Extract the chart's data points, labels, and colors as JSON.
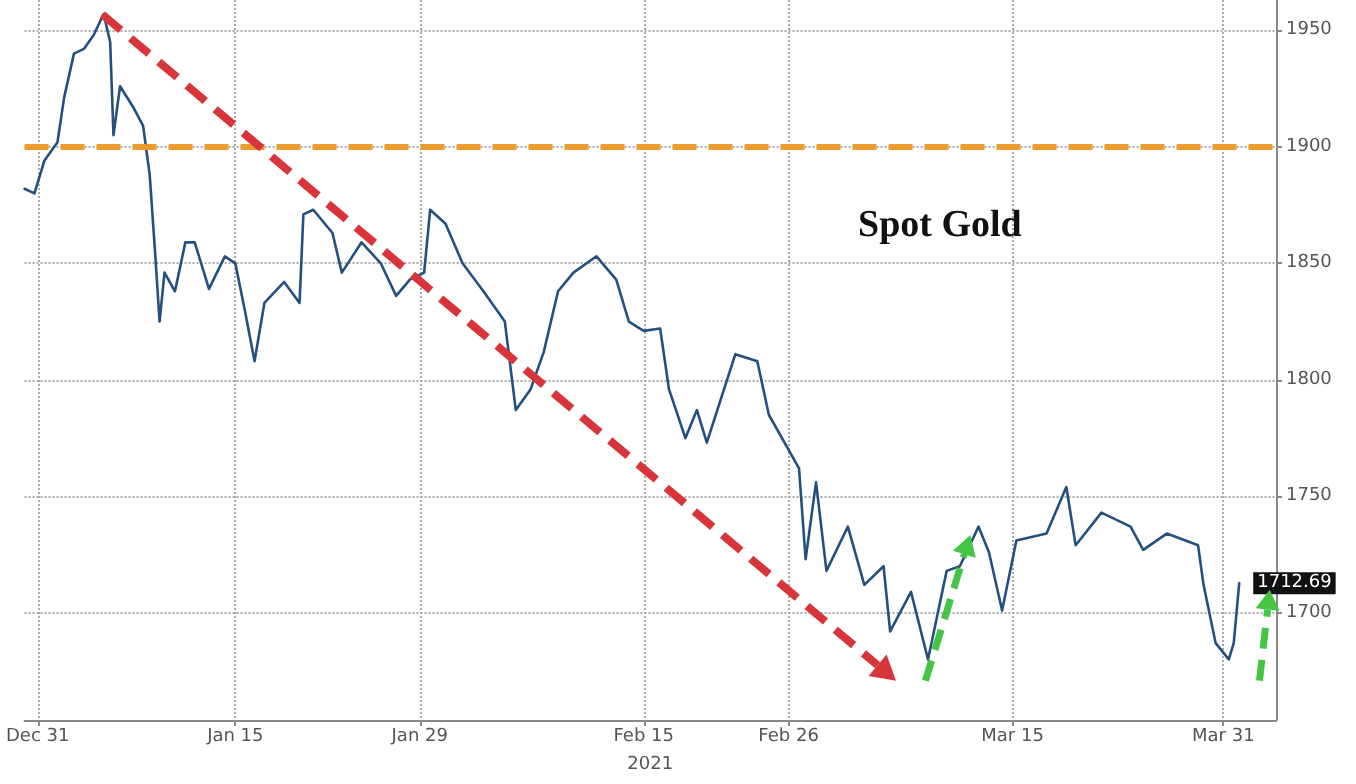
{
  "chart_data": {
    "type": "line",
    "title": "Spot Gold",
    "xlabel": "2021",
    "x": [
      "2020-12-30",
      "2020-12-30T18:00",
      "2020-12-31T12:00",
      "2021-01-01T12:00",
      "2021-01-02",
      "2021-01-02T18:00",
      "2021-01-03T12:00",
      "2021-01-04T06:00",
      "2021-01-05",
      "2021-01-05T12:00",
      "2021-01-05T18:00",
      "2021-01-06T06:00",
      "2021-01-07T06:00",
      "2021-01-08",
      "2021-01-08T12:00",
      "2021-01-08T22:00",
      "2021-01-09T06:00",
      "2021-01-09T15:00",
      "2021-01-10T10:00",
      "2021-01-11T05:00",
      "2021-01-11T22:00",
      "2021-01-13",
      "2021-01-14T05:00",
      "2021-01-15",
      "2021-01-15T18:00",
      "2021-01-16T11:00",
      "2021-01-17T05:00",
      "2021-01-18T17:00",
      "2021-01-19T21:00",
      "2021-01-20T04:00",
      "2021-01-20T22:00",
      "2021-01-22T09:00",
      "2021-01-23T02:00",
      "2021-01-24T14:00",
      "2021-01-26T01:00",
      "2021-01-27T05:00",
      "2021-01-28T06:00",
      "2021-01-29T08:00",
      "2021-01-29T19:00",
      "2021-01-30T23:00",
      "2021-02-01T06:00",
      "2021-02-02T20:00",
      "2021-02-04T11:00",
      "2021-02-05T07:00",
      "2021-02-06T10:00",
      "2021-02-07T10:00",
      "2021-02-08T12:00",
      "2021-02-09T16:00",
      "2021-02-11T10:00",
      "2021-02-12T22:00",
      "2021-02-13T21:00",
      "2021-02-15",
      "2021-02-16T06:00",
      "2021-02-16T22:00",
      "2021-02-18T04:00",
      "2021-02-19T01:00",
      "2021-02-19T19:00",
      "2021-02-21T23:00",
      "2021-02-23T15:00",
      "2021-02-24T12:00",
      "2021-02-26T19:00",
      "2021-02-27T07:00",
      "2021-02-28T02:00",
      "2021-02-28T21:00",
      "2021-03-02T12:00",
      "2021-03-03T18:00",
      "2021-03-05T05:00",
      "2021-03-05T17:00",
      "2021-03-07T07:00",
      "2021-03-08T14:00",
      "2021-03-10",
      "2021-03-11",
      "2021-03-12T10:00",
      "2021-03-13T05:00",
      "2021-03-14T05:00",
      "2021-03-15T07:00",
      "2021-03-17T14:00",
      "2021-03-19T02:00",
      "2021-03-19T19:00",
      "2021-03-21T18:00",
      "2021-03-23T23:00",
      "2021-03-24T22:00",
      "2021-03-26T17:00",
      "2021-03-29T02:00",
      "2021-03-29T12:00",
      "2021-03-30T10:00",
      "2021-03-31T10:00",
      "2021-03-31T19:00",
      "2021-04-01T05:00"
    ],
    "series": [
      {
        "color": "#24507f",
        "values": [
          1882,
          1880,
          1894,
          1902,
          1921,
          1940,
          1942,
          1948,
          1957,
          1945,
          1905,
          1926,
          1917,
          1909,
          1888,
          1854,
          1825,
          1846,
          1838,
          1859,
          1859,
          1839,
          1853,
          1850,
          1829,
          1808,
          1833,
          1842,
          1833,
          1871,
          1873,
          1863,
          1846,
          1859,
          1850,
          1836,
          1843,
          1846,
          1873,
          1867,
          1850,
          1838,
          1825,
          1787,
          1796,
          1812,
          1838,
          1846,
          1853,
          1843,
          1825,
          1821,
          1822,
          1796,
          1775,
          1787,
          1773,
          1811,
          1808,
          1785,
          1762,
          1723,
          1756,
          1718,
          1737,
          1712,
          1720,
          1692,
          1709,
          1680,
          1718,
          1720,
          1737,
          1726,
          1701,
          1731,
          1734,
          1754,
          1729,
          1743,
          1737,
          1727,
          1734,
          1729,
          1712,
          1687,
          1680,
          1687,
          1712.69
        ],
        "value_labels": [
          null,
          null,
          null,
          null,
          null,
          null,
          null,
          null,
          null,
          null,
          null,
          null,
          null,
          null,
          null,
          null,
          null,
          null,
          null,
          null,
          null,
          null,
          null,
          null,
          null,
          null,
          null,
          null,
          null,
          null,
          null,
          null,
          null,
          null,
          null,
          null,
          null,
          null,
          null,
          null,
          null,
          null,
          null,
          null,
          null,
          null,
          null,
          null,
          null,
          null,
          null,
          null,
          null,
          null,
          null,
          null,
          null,
          null,
          null,
          null,
          null,
          null,
          null,
          null,
          null,
          null,
          null,
          null,
          null,
          null,
          null,
          null,
          null,
          null,
          null,
          null,
          null,
          null,
          null,
          null,
          null,
          null,
          null,
          null,
          null,
          null,
          null,
          null,
          "1712.69"
        ]
      }
    ],
    "xlim": [
      "2020-12-30",
      "2021-04-04"
    ],
    "xticks": [
      {
        "value": "2020-12-31",
        "label": "Dec 31"
      },
      {
        "value": "2021-01-15",
        "label": "Jan 15"
      },
      {
        "value": "2021-01-29",
        "label": "Jan 29"
      },
      {
        "value": "2021-02-15",
        "label": "Feb 15"
      },
      {
        "value": "2021-02-26",
        "label": "Feb 26"
      },
      {
        "value": "2021-03-15",
        "label": "Mar 15"
      },
      {
        "value": "2021-03-31",
        "label": "Mar 31"
      }
    ],
    "ylim": [
      1654,
      1963
    ],
    "yticks": [
      1700,
      1750,
      1800,
      1850,
      1900,
      1950
    ],
    "ref_lines": [
      {
        "axis": "y",
        "value": 1900,
        "color": "#eb9c2c",
        "line_style": "dashed"
      }
    ],
    "grid": true,
    "marker": "none",
    "line_style": "solid"
  }
}
